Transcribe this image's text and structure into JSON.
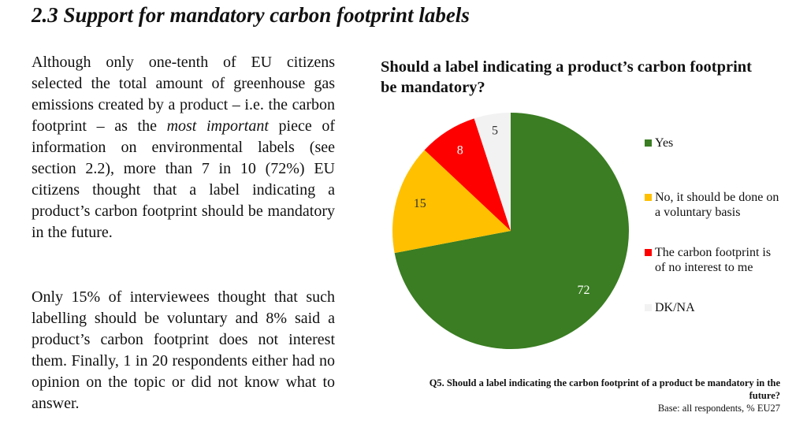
{
  "header": {
    "title": "2.3 Support for mandatory carbon footprint labels"
  },
  "paragraphs": [
    [
      "Although only one-tenth of EU citizens selected the total amount of greenhouse gas emissions created by a product – i.e. the carbon footprint – as the ",
      "most important",
      " piece of information on environmental labels (see section 2.2), more than 7 in 10 (72%) EU citizens thought that a label indicating a product’s carbon footprint should be mandatory in the future."
    ],
    [
      "Only 15% of interviewees thought that such labelling should be voluntary and 8% said a product’s carbon footprint does not interest them. Finally, 1 in 20 respondents either had no opinion on the topic or did not know what to answer."
    ]
  ],
  "chart_data": {
    "type": "pie",
    "title": "Should a label indicating a product’s carbon footprint be mandatory?",
    "categories": [
      "Yes",
      "No, it should be done on a voluntary basis",
      "The carbon footprint is of no interest to me",
      "DK/NA"
    ],
    "values": [
      72,
      15,
      8,
      5
    ],
    "colors": [
      "#3a7d22",
      "#ffc000",
      "#ff0000",
      "#f2f2f2"
    ],
    "label_colors": [
      "#ffffff",
      "#333333",
      "#ffffff",
      "#333333"
    ],
    "legend": "right",
    "notes": [
      "Q5. Should a label indicating the carbon footprint of a product be mandatory in the future?",
      "Base: all respondents, % EU27"
    ]
  }
}
